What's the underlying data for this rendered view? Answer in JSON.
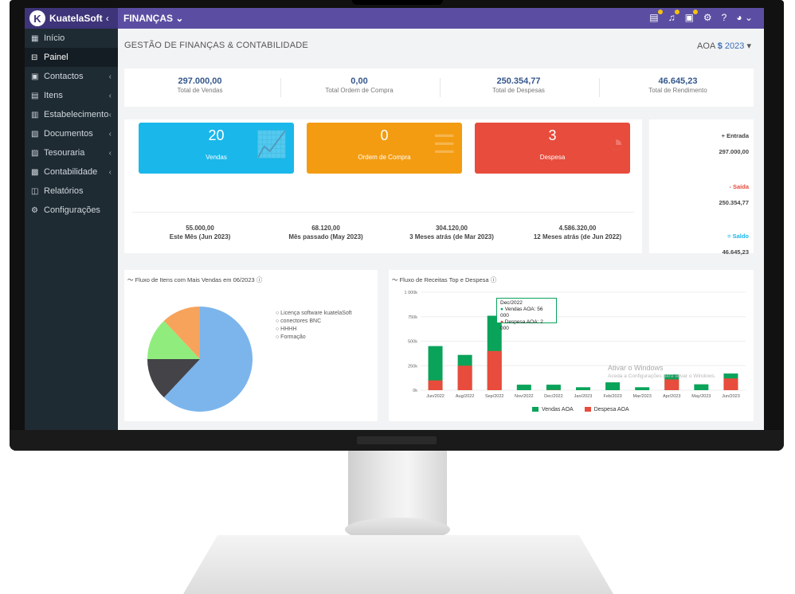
{
  "brand": {
    "name": "KuatelaSoft",
    "logo_letter": "K"
  },
  "module": "FINANÇAS",
  "sidebar": {
    "items": [
      {
        "label": "Início",
        "icon": "home-icon",
        "arrow": false
      },
      {
        "label": "Painel",
        "icon": "dashboard-icon",
        "arrow": false,
        "active": true
      },
      {
        "label": "Contactos",
        "icon": "contacts-icon",
        "arrow": true
      },
      {
        "label": "Itens",
        "icon": "items-icon",
        "arrow": true
      },
      {
        "label": "Estabelecimento",
        "icon": "building-icon",
        "arrow": true
      },
      {
        "label": "Documentos",
        "icon": "documents-icon",
        "arrow": true
      },
      {
        "label": "Tesouraria",
        "icon": "treasury-icon",
        "arrow": true
      },
      {
        "label": "Contabilidade",
        "icon": "accounting-icon",
        "arrow": true
      },
      {
        "label": "Relatórios",
        "icon": "reports-icon",
        "arrow": false
      },
      {
        "label": "Configurações",
        "icon": "gear-icon",
        "arrow": false
      }
    ]
  },
  "header": {
    "title": "GESTÃO DE FINANÇAS & CONTABILIDADE",
    "currency": "AOA",
    "currency_symbol": "$",
    "year": "2023"
  },
  "stats": [
    {
      "value": "297.000,00",
      "label": "Total de Vendas"
    },
    {
      "value": "0,00",
      "label": "Total Ordem de Compra"
    },
    {
      "value": "250.354,77",
      "label": "Total de Despesas"
    },
    {
      "value": "46.645,23",
      "label": "Total de Rendimento"
    }
  ],
  "cards": [
    {
      "number": "20",
      "label": "Vendas",
      "color": "#1ab7ea"
    },
    {
      "number": "0",
      "label": "Ordem de Compra",
      "color": "#f39c12"
    },
    {
      "number": "3",
      "label": "Despesa",
      "color": "#e74c3c"
    }
  ],
  "periods": [
    {
      "value": "55.000,00",
      "label": "Este Mês (Jun 2023)"
    },
    {
      "value": "68.120,00",
      "label": "Mês passado (May 2023)"
    },
    {
      "value": "304.120,00",
      "label": "3 Meses atrás (de Mar 2023)"
    },
    {
      "value": "4.586.320,00",
      "label": "12 Meses atrás (de Jun 2022)"
    }
  ],
  "flow": {
    "entrada_label": "+ Entrada",
    "entrada_value": "297.000,00",
    "saida_label": "- Saída",
    "saida_value": "250.354,77",
    "saldo_label": "= Saldo",
    "saldo_value": "46.645,23"
  },
  "chart_data": [
    {
      "type": "pie",
      "title": "Fluxo de Itens com Mais Vendas em 06/2023",
      "labels": [
        "Licença software kuatelaSoft",
        "conectores BNC",
        "HHHH",
        "Formação"
      ],
      "values": [
        62,
        13,
        13,
        12
      ],
      "colors": [
        "#7cb5ec",
        "#434348",
        "#90ed7d",
        "#f7a35c"
      ]
    },
    {
      "type": "bar",
      "title": "Fluxo de Receitas Top e Despesa",
      "categories": [
        "Jun/2022",
        "Aug/2022",
        "Sep/2022",
        "Nov/2022",
        "Dec/2022",
        "Jan/2023",
        "Feb/2023",
        "Mar/2023",
        "Apr/2023",
        "May/2023",
        "Jun/2023"
      ],
      "series": [
        {
          "name": "Vendas AOA",
          "color": "#0aa35a",
          "values": [
            450000,
            360000,
            760000,
            56000,
            56000,
            30000,
            80000,
            30000,
            160000,
            60000,
            170000
          ]
        },
        {
          "name": "Despesa AOA",
          "color": "#e74c3c",
          "values": [
            100000,
            250000,
            400000,
            0,
            2000,
            0,
            0,
            0,
            110000,
            0,
            120000
          ]
        }
      ],
      "yticks": [
        "0k",
        "250k",
        "500k",
        "750k",
        "1 000k"
      ],
      "ylim": [
        0,
        1000000
      ],
      "tooltip": {
        "title": "Dec/2022",
        "line1": "Vendas AOA: 56 000",
        "line2": "Despesa AOA: 2 000"
      }
    }
  ],
  "watermark": {
    "line1": "Ativar o Windows",
    "line2": "Aceda a Configurações para ativar o Windows."
  }
}
